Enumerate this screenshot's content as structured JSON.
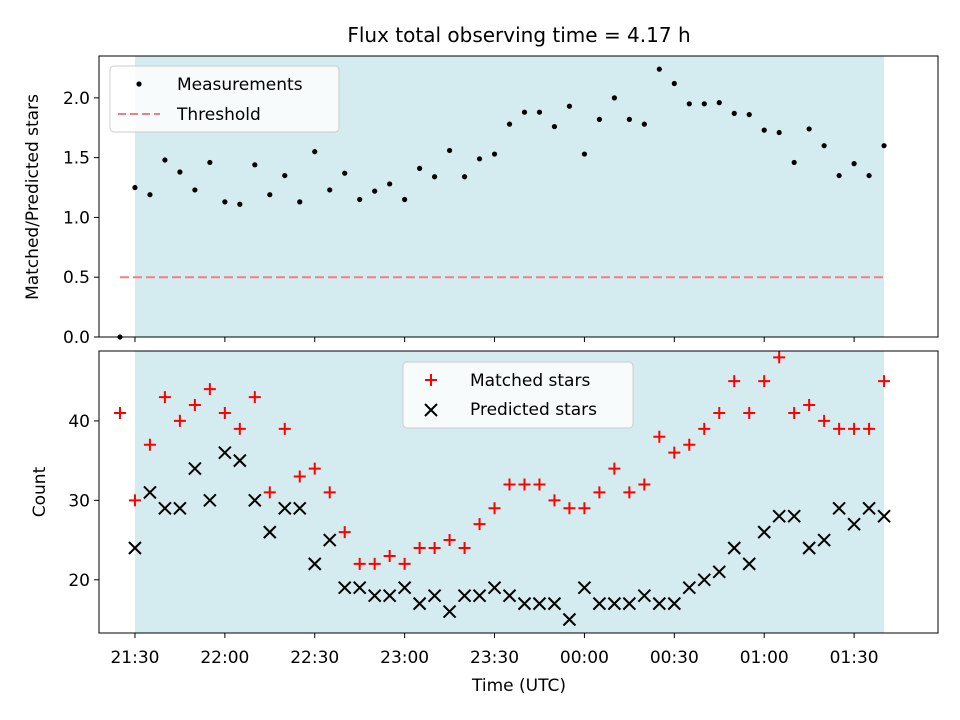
{
  "chart_data": [
    {
      "type": "scatter",
      "title": "Flux total observing time = 4.17 h",
      "xlabel": "",
      "ylabel": "Matched/Predicted stars",
      "ylim": [
        0,
        2.35
      ],
      "yticks": [
        0.0,
        0.5,
        1.0,
        1.5,
        2.0
      ],
      "ytick_labels": [
        "0.0",
        "0.5",
        "1.0",
        "1.5",
        "2.0"
      ],
      "x_minutes_from_midnight_range": [
        -162,
        118
      ],
      "shaded_span_minutes": [
        -150,
        100
      ],
      "shade_color": "#d4ebf0",
      "legend": {
        "placement": "upper-left",
        "entries": [
          "Measurements",
          "Threshold"
        ]
      },
      "series": [
        {
          "name": "Measurements",
          "marker": "dot",
          "color": "#000000",
          "x": [
            "21:25",
            "21:30",
            "21:35",
            "21:40",
            "21:45",
            "21:50",
            "21:55",
            "22:00",
            "22:05",
            "22:10",
            "22:15",
            "22:20",
            "22:25",
            "22:30",
            "22:35",
            "22:40",
            "22:45",
            "22:50",
            "22:55",
            "23:00",
            "23:05",
            "23:10",
            "23:15",
            "23:20",
            "23:25",
            "23:30",
            "23:35",
            "23:40",
            "23:45",
            "23:50",
            "23:55",
            "00:00",
            "00:05",
            "00:10",
            "00:15",
            "00:20",
            "00:25",
            "00:30",
            "00:35",
            "00:40",
            "00:45",
            "00:50",
            "00:55",
            "01:00",
            "01:05",
            "01:10",
            "01:15",
            "01:20",
            "01:25",
            "01:30",
            "01:35",
            "01:40"
          ],
          "y": [
            0.0,
            1.25,
            1.19,
            1.48,
            1.38,
            1.23,
            1.46,
            1.13,
            1.11,
            1.44,
            1.19,
            1.35,
            1.13,
            1.55,
            1.23,
            1.37,
            1.15,
            1.22,
            1.28,
            1.15,
            1.41,
            1.34,
            1.56,
            1.34,
            1.49,
            1.53,
            1.78,
            1.88,
            1.88,
            1.76,
            1.93,
            1.53,
            1.82,
            2.0,
            1.82,
            1.78,
            2.24,
            2.12,
            1.95,
            1.95,
            1.96,
            1.87,
            1.86,
            1.73,
            1.71,
            1.46,
            1.74,
            1.6,
            1.35,
            1.45,
            1.35,
            1.6
          ]
        },
        {
          "name": "Threshold",
          "marker": "dashed-line",
          "color": "#f08080",
          "x": [
            "21:25",
            "01:40"
          ],
          "y": [
            0.5,
            0.5
          ]
        }
      ]
    },
    {
      "type": "scatter",
      "title": "",
      "xlabel": "Time (UTC)",
      "ylabel": "Count",
      "ylim": [
        13.3,
        48.8
      ],
      "yticks": [
        20,
        30,
        40
      ],
      "ytick_labels": [
        "20",
        "30",
        "40"
      ],
      "xtick_labels": [
        "21:30",
        "22:00",
        "22:30",
        "23:00",
        "23:30",
        "00:00",
        "00:30",
        "01:00",
        "01:30"
      ],
      "xticks_minutes": [
        -150,
        -120,
        -90,
        -60,
        -30,
        0,
        30,
        60,
        90
      ],
      "x_minutes_from_midnight_range": [
        -162,
        118
      ],
      "shaded_span_minutes": [
        -150,
        100
      ],
      "shade_color": "#d4ebf0",
      "legend": {
        "placement": "upper-center",
        "entries": [
          "Matched stars",
          "Predicted stars"
        ]
      },
      "series": [
        {
          "name": "Matched stars",
          "marker": "plus",
          "color": "#ff0000",
          "x": [
            "21:25",
            "21:30",
            "21:35",
            "21:40",
            "21:45",
            "21:50",
            "21:55",
            "22:00",
            "22:05",
            "22:10",
            "22:15",
            "22:20",
            "22:25",
            "22:30",
            "22:35",
            "22:40",
            "22:45",
            "22:50",
            "22:55",
            "23:00",
            "23:05",
            "23:10",
            "23:15",
            "23:20",
            "23:25",
            "23:30",
            "23:35",
            "23:40",
            "23:45",
            "23:50",
            "23:55",
            "00:00",
            "00:05",
            "00:10",
            "00:15",
            "00:20",
            "00:25",
            "00:30",
            "00:35",
            "00:40",
            "00:45",
            "00:50",
            "00:55",
            "01:00",
            "01:05",
            "01:10",
            "01:15",
            "01:20",
            "01:25",
            "01:30",
            "01:35",
            "01:40"
          ],
          "y": [
            41,
            30,
            37,
            43,
            40,
            42,
            44,
            41,
            39,
            43,
            31,
            39,
            33,
            34,
            31,
            26,
            22,
            22,
            23,
            22,
            24,
            24,
            25,
            24,
            27,
            29,
            32,
            32,
            32,
            30,
            29,
            29,
            31,
            34,
            31,
            32,
            38,
            36,
            37,
            39,
            41,
            45,
            41,
            45,
            48,
            41,
            42,
            40,
            39,
            39,
            39,
            45
          ]
        },
        {
          "name": "Predicted stars",
          "marker": "x",
          "color": "#000000",
          "x": [
            "21:30",
            "21:35",
            "21:40",
            "21:45",
            "21:50",
            "21:55",
            "22:00",
            "22:05",
            "22:10",
            "22:15",
            "22:20",
            "22:25",
            "22:30",
            "22:35",
            "22:40",
            "22:45",
            "22:50",
            "22:55",
            "23:00",
            "23:05",
            "23:10",
            "23:15",
            "23:20",
            "23:25",
            "23:30",
            "23:35",
            "23:40",
            "23:45",
            "23:50",
            "23:55",
            "00:00",
            "00:05",
            "00:10",
            "00:15",
            "00:20",
            "00:25",
            "00:30",
            "00:35",
            "00:40",
            "00:45",
            "00:50",
            "00:55",
            "01:00",
            "01:05",
            "01:10",
            "01:15",
            "01:20",
            "01:25",
            "01:30",
            "01:35",
            "01:40"
          ],
          "y": [
            24,
            31,
            29,
            29,
            34,
            30,
            36,
            35,
            30,
            26,
            29,
            29,
            22,
            25,
            19,
            19,
            18,
            18,
            19,
            17,
            18,
            16,
            18,
            18,
            19,
            18,
            17,
            17,
            17,
            15,
            19,
            17,
            17,
            17,
            18,
            17,
            17,
            19,
            20,
            21,
            24,
            22,
            26,
            28,
            28,
            24,
            25,
            29,
            27,
            29,
            28
          ]
        }
      ]
    }
  ]
}
